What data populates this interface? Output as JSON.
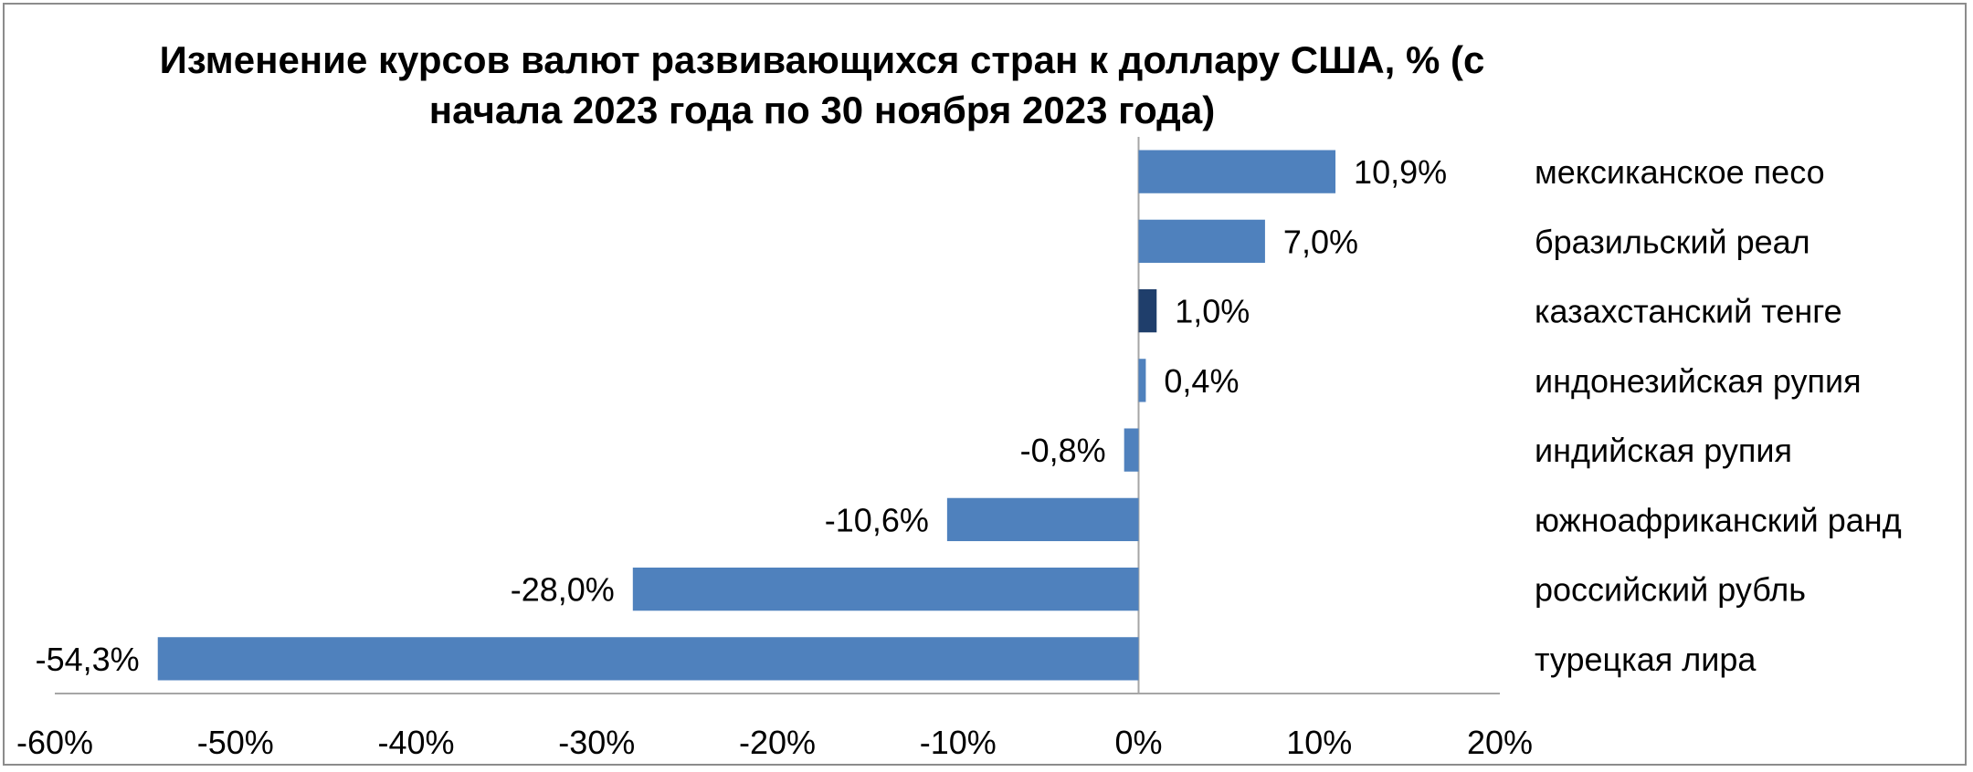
{
  "chart_data": {
    "type": "bar",
    "orientation": "horizontal",
    "title": "Изменение курсов валют развивающихся стран к доллару США, % (с начала 2023 года по 30 ноября 2023 года)",
    "title_lines": [
      "Изменение курсов валют развивающихся стран к доллару США, % (с",
      "начала 2023 года по 30 ноября 2023 года)"
    ],
    "categories": [
      "мексиканское песо",
      "бразильский реал",
      "казахстанский тенге",
      "индонезийская рупия",
      "индийская рупия",
      "южноафриканский ранд",
      "российский рубль",
      "турецкая лира"
    ],
    "values": [
      10.9,
      7.0,
      1.0,
      0.4,
      -0.8,
      -10.6,
      -28.0,
      -54.3
    ],
    "data_labels": [
      "10,9%",
      "7,0%",
      "1,0%",
      "0,4%",
      "-0,8%",
      "-10,6%",
      "-28,0%",
      "-54,3%"
    ],
    "bar_colors": [
      "#4f81bd",
      "#4f81bd",
      "#1f3e6b",
      "#4f81bd",
      "#4f81bd",
      "#4f81bd",
      "#4f81bd",
      "#4f81bd"
    ],
    "xlim": [
      -60,
      20
    ],
    "x_ticks": [
      -60,
      -50,
      -40,
      -30,
      -20,
      -10,
      0,
      10,
      20
    ],
    "x_tick_labels": [
      "-60%",
      "-50%",
      "-40%",
      "-30%",
      "-20%",
      "-10%",
      "0%",
      "10%",
      "20%"
    ],
    "xlabel": "",
    "ylabel": "",
    "grid": false,
    "legend": "none"
  }
}
